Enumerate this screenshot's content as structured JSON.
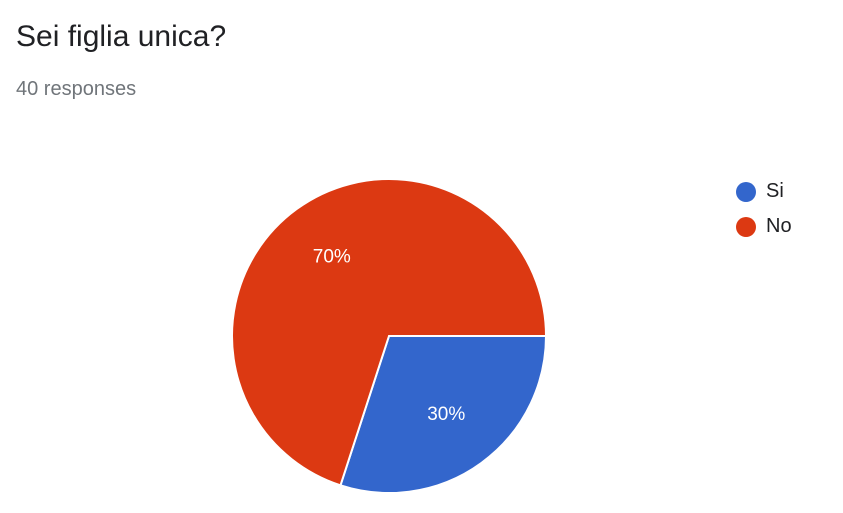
{
  "question": {
    "title": "Sei figlia unica?",
    "responses": "40 responses"
  },
  "chart_data": {
    "type": "pie",
    "title": "Sei figlia unica?",
    "categories": [
      "Si",
      "No"
    ],
    "values": [
      30,
      70
    ],
    "labels": [
      "30%",
      "70%"
    ],
    "colors": [
      "#3366cc",
      "#dc3912"
    ],
    "legend_position": "right",
    "start_angle_deg": 90
  }
}
